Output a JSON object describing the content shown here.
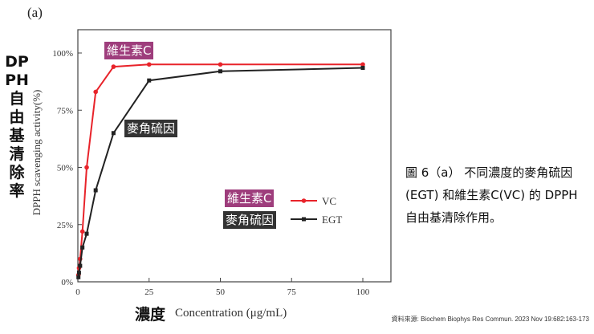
{
  "panel_label": "(a)",
  "y_label_vertical": "DPPH自由基清除率",
  "x_label_zh": "濃度",
  "caption": "圖 6（a） 不同濃度的麥角硫因(EGT) 和維生素C(VC) 的 DPPH自由基清除作用。",
  "source": "資料來源: Biochem Biophys Res Commun. 2023 Nov 19:682:163-173",
  "annotations": {
    "vc_curve": "維生素C",
    "egt_curve": "麥角硫因",
    "vc_legend": "維生素C",
    "egt_legend": "麥角硫因"
  },
  "colors": {
    "vc": "#e8232a",
    "egt": "#222222",
    "tag_vc_bg": "#9e3d7c",
    "tag_egt_bg": "#333333"
  },
  "chart_data": {
    "type": "line",
    "xlabel": "Concentration (μg/mL)",
    "ylabel": "DPPH scavenging activity(%)",
    "xlim": [
      0,
      100
    ],
    "ylim": [
      0,
      100
    ],
    "xticks": [
      0,
      25,
      50,
      75,
      100
    ],
    "yticks": [
      0,
      25,
      50,
      75,
      100
    ],
    "ytick_labels": [
      "0%",
      "25%",
      "50%",
      "75%",
      "100%"
    ],
    "legend_position": "lower-right",
    "series": [
      {
        "name": "VC",
        "color": "#e8232a",
        "marker": "circle",
        "x": [
          0.2,
          0.4,
          0.8,
          1.6,
          3.1,
          6.25,
          12.5,
          25,
          50,
          100
        ],
        "y": [
          3,
          6,
          10,
          22,
          50,
          83,
          94,
          95,
          95,
          95
        ]
      },
      {
        "name": "EGT",
        "color": "#222222",
        "marker": "square",
        "x": [
          0.2,
          0.4,
          0.8,
          1.6,
          3.1,
          6.25,
          12.5,
          25,
          50,
          100
        ],
        "y": [
          2,
          4,
          7,
          15,
          21,
          40,
          65,
          88,
          92,
          93.5
        ]
      }
    ]
  }
}
